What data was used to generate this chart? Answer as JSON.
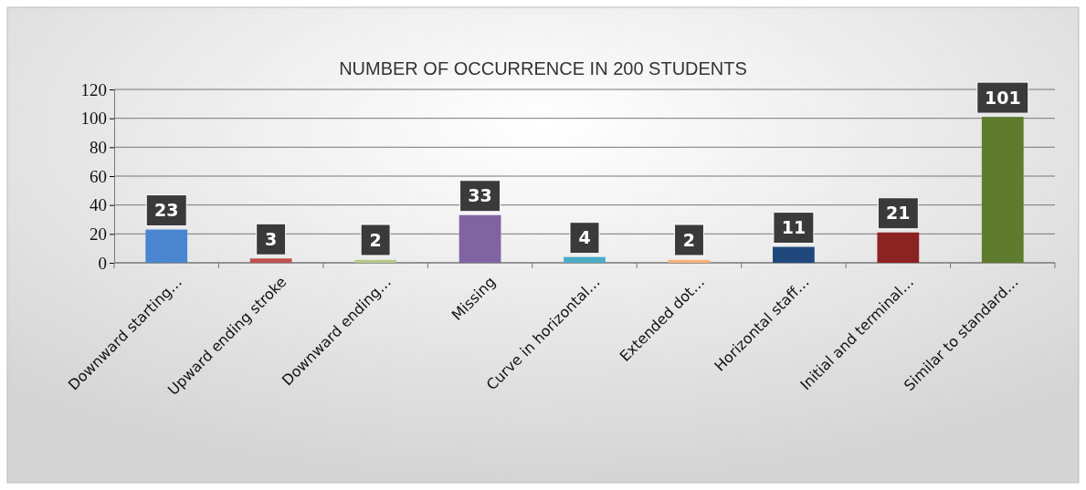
{
  "chart_data": {
    "type": "bar",
    "title": "NUMBER OF OCCURRENCE IN 200 STUDENTS",
    "categories": [
      "Downward starting…",
      "Upward ending stroke",
      "Downward ending…",
      "Missing",
      "Curve in horizontal…",
      "Extended dot…",
      "Horizontal staff…",
      "Initial and terminal…",
      "Similar to standard…"
    ],
    "values": [
      23,
      3,
      2,
      33,
      4,
      2,
      11,
      21,
      101
    ],
    "colors": [
      "#4a86d0",
      "#c0504d",
      "#b5c98a",
      "#8064a2",
      "#4bacc6",
      "#f7b27a",
      "#1f497d",
      "#8b2323",
      "#5e7b2e"
    ],
    "ylim": [
      0,
      120
    ],
    "yticks": [
      0,
      20,
      40,
      60,
      80,
      100,
      120
    ],
    "grid": "y",
    "data_labels": true
  }
}
